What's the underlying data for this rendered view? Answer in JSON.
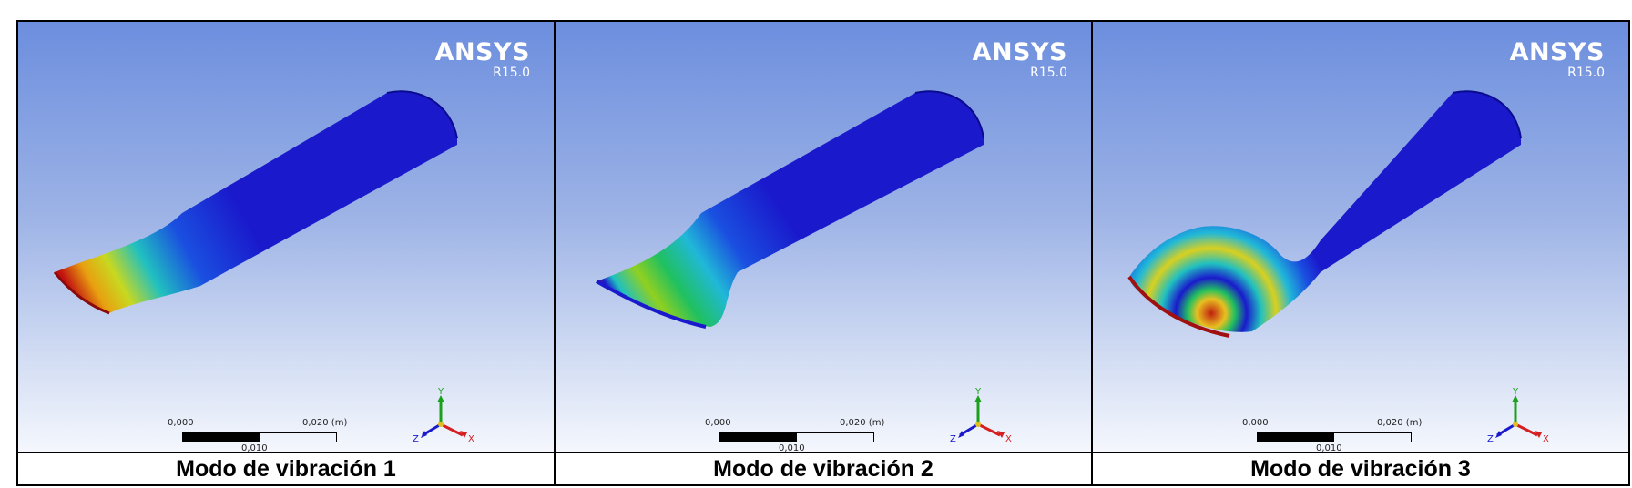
{
  "panels": [
    {
      "logo": "ANSYS",
      "version": "R15.0",
      "scale_left": "0,000",
      "scale_right": "0,020 (m)",
      "scale_mid": "0,010",
      "axis_y": "Y",
      "axis_x": "X",
      "axis_z": "Z",
      "caption": "Modo de vibración 1"
    },
    {
      "logo": "ANSYS",
      "version": "R15.0",
      "scale_left": "0,000",
      "scale_right": "0,020 (m)",
      "scale_mid": "0,010",
      "axis_y": "Y",
      "axis_x": "X",
      "axis_z": "Z",
      "caption": "Modo de vibración 2"
    },
    {
      "logo": "ANSYS",
      "version": "R15.0",
      "scale_left": "0,000",
      "scale_right": "0,020 (m)",
      "scale_mid": "0,010",
      "axis_y": "Y",
      "axis_x": "X",
      "axis_z": "Z",
      "caption": "Modo de vibración 3"
    }
  ],
  "colors": {
    "model_base": "#1a1acc",
    "logo_text": "#ffffff",
    "axis_x": "#d42020",
    "axis_y": "#1aa01a",
    "axis_z": "#1a1acc"
  }
}
